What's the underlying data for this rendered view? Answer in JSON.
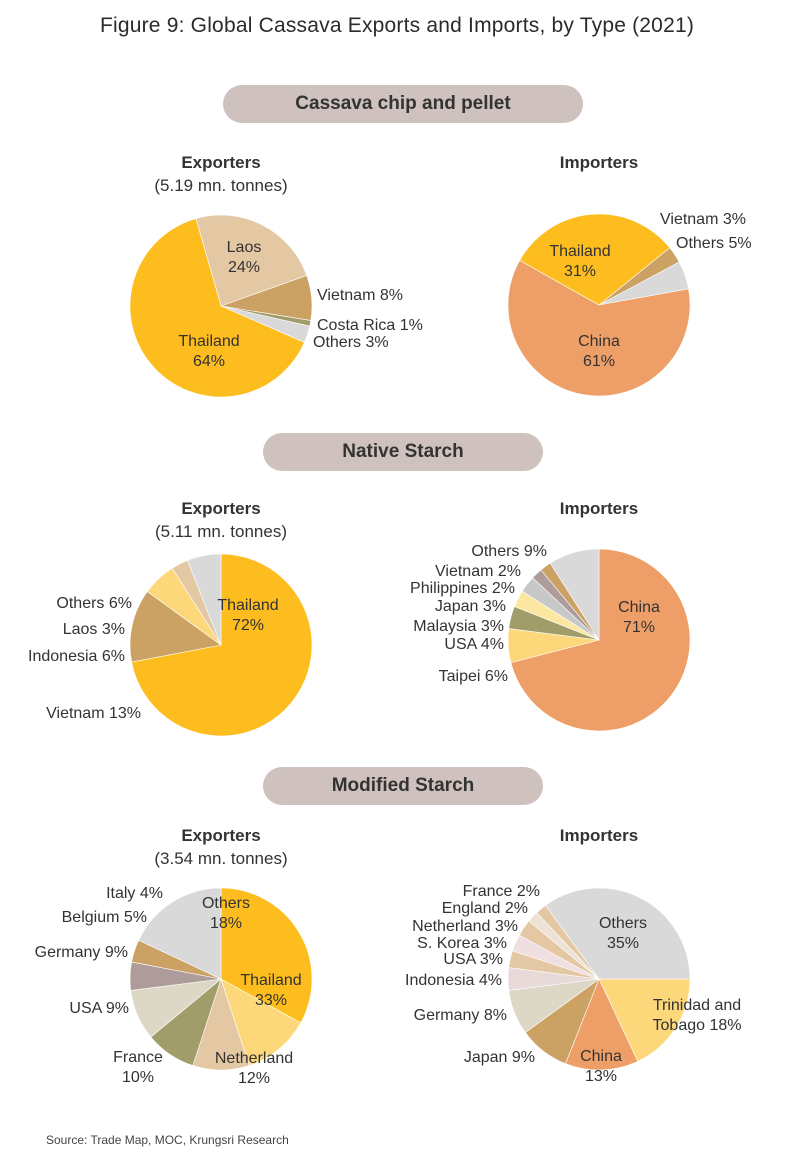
{
  "figure_title": "Figure 9: Global Cassava Exports and Imports, by Type (2021)",
  "source": "Source: Trade Map, MOC, Krungsri Research",
  "colors": {
    "pill_bg": "#cfc2be",
    "thailand": "#fdbd1e",
    "china": "#ee9f67",
    "others": "#d9d9d9",
    "laos": "#e3c8a3",
    "vietnam": "#cca264",
    "costa_rica": "#a19d6a",
    "light_yellow": "#fdd87a",
    "olive": "#a19d6a",
    "mauve": "#ad9c99",
    "pale_pink": "#e8dad9"
  },
  "sections": [
    {
      "title": "Cassava chip and pellet",
      "exporters": {
        "header": "Exporters",
        "subheader": "(5.19 mn. tonnes)"
      },
      "importers": {
        "header": "Importers",
        "subheader": ""
      }
    },
    {
      "title": "Native Starch",
      "exporters": {
        "header": "Exporters",
        "subheader": "(5.11 mn. tonnes)"
      },
      "importers": {
        "header": "Importers",
        "subheader": ""
      }
    },
    {
      "title": "Modified Starch",
      "exporters": {
        "header": "Exporters",
        "subheader": "(3.54 mn. tonnes)"
      },
      "importers": {
        "header": "Importers",
        "subheader": ""
      }
    }
  ],
  "chart_data": [
    {
      "type": "pie",
      "title": "Cassava chip and pellet - Exporters",
      "total": "5.19 mn. tonnes",
      "slices": [
        {
          "label": "Laos",
          "value": 24,
          "color": "#e3c8a3"
        },
        {
          "label": "Vietnam",
          "value": 8,
          "color": "#cca264"
        },
        {
          "label": "Costa Rica",
          "value": 1,
          "color": "#a19d6a"
        },
        {
          "label": "Others",
          "value": 3,
          "color": "#d9d9d9"
        },
        {
          "label": "Thailand",
          "value": 64,
          "color": "#fdbd1e"
        }
      ]
    },
    {
      "type": "pie",
      "title": "Cassava chip and pellet - Importers",
      "slices": [
        {
          "label": "Vietnam",
          "value": 3,
          "color": "#cca264"
        },
        {
          "label": "Others",
          "value": 5,
          "color": "#d9d9d9"
        },
        {
          "label": "China",
          "value": 61,
          "color": "#ee9f67"
        },
        {
          "label": "Thailand",
          "value": 31,
          "color": "#fdbd1e"
        }
      ]
    },
    {
      "type": "pie",
      "title": "Native Starch - Exporters",
      "total": "5.11 mn. tonnes",
      "slices": [
        {
          "label": "Thailand",
          "value": 72,
          "color": "#fdbd1e"
        },
        {
          "label": "Vietnam",
          "value": 13,
          "color": "#cca264"
        },
        {
          "label": "Indonesia",
          "value": 6,
          "color": "#fdd87a"
        },
        {
          "label": "Laos",
          "value": 3,
          "color": "#e3c8a3"
        },
        {
          "label": "Others",
          "value": 6,
          "color": "#d9d9d9"
        }
      ]
    },
    {
      "type": "pie",
      "title": "Native Starch - Importers",
      "slices": [
        {
          "label": "China",
          "value": 71,
          "color": "#ee9f67"
        },
        {
          "label": "Taipei",
          "value": 6,
          "color": "#fdd87a"
        },
        {
          "label": "USA",
          "value": 4,
          "color": "#a19d6a"
        },
        {
          "label": "Malaysia",
          "value": 3,
          "color": "#fce7a0"
        },
        {
          "label": "Japan",
          "value": 3,
          "color": "#c8c8c8"
        },
        {
          "label": "Philippines",
          "value": 2,
          "color": "#ad9c99"
        },
        {
          "label": "Vietnam",
          "value": 2,
          "color": "#cca264"
        },
        {
          "label": "Others",
          "value": 9,
          "color": "#d9d9d9"
        }
      ]
    },
    {
      "type": "pie",
      "title": "Modified Starch - Exporters",
      "total": "3.54 mn. tonnes",
      "slices": [
        {
          "label": "Thailand",
          "value": 33,
          "color": "#fdbd1e"
        },
        {
          "label": "Netherland",
          "value": 12,
          "color": "#fdd87a"
        },
        {
          "label": "France",
          "value": 10,
          "color": "#e3c8a3"
        },
        {
          "label": "USA",
          "value": 9,
          "color": "#a19d6a"
        },
        {
          "label": "Germany",
          "value": 9,
          "color": "#ddd8c6"
        },
        {
          "label": "Belgium",
          "value": 5,
          "color": "#ad9c99"
        },
        {
          "label": "Italy",
          "value": 4,
          "color": "#cca264"
        },
        {
          "label": "Others",
          "value": 18,
          "color": "#d9d9d9"
        }
      ]
    },
    {
      "type": "pie",
      "title": "Modified Starch - Importers",
      "slices": [
        {
          "label": "Trinidad and Tobago",
          "value": 18,
          "color": "#fdd87a"
        },
        {
          "label": "China",
          "value": 13,
          "color": "#ee9f67"
        },
        {
          "label": "Japan",
          "value": 9,
          "color": "#cca264"
        },
        {
          "label": "Germany",
          "value": 8,
          "color": "#ddd8c6"
        },
        {
          "label": "Indonesia",
          "value": 4,
          "color": "#e8dad9"
        },
        {
          "label": "USA",
          "value": 3,
          "color": "#e3c8a3"
        },
        {
          "label": "S. Korea",
          "value": 3,
          "color": "#f0dfe0"
        },
        {
          "label": "Netherland",
          "value": 3,
          "color": "#e3c8a3"
        },
        {
          "label": "England",
          "value": 2,
          "color": "#eee2d6"
        },
        {
          "label": "France",
          "value": 2,
          "color": "#e3c8a3"
        },
        {
          "label": "Others",
          "value": 35,
          "color": "#d9d9d9"
        }
      ]
    }
  ]
}
